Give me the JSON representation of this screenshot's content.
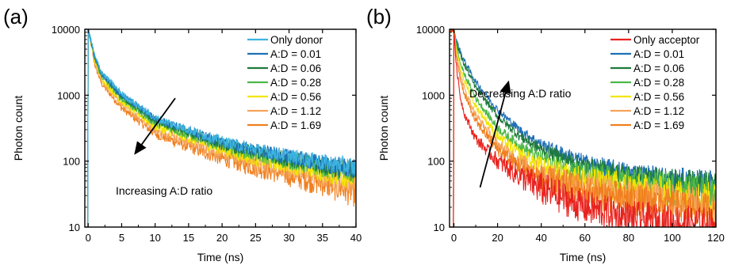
{
  "chart_data": [
    {
      "type": "line",
      "panel_label": "(a)",
      "xlabel": "Time (ns)",
      "ylabel": "Photon count",
      "xlim": [
        -0.5,
        40
      ],
      "ylim": [
        10,
        10000
      ],
      "y_scale": "log",
      "x_ticks": [
        0,
        5,
        10,
        15,
        20,
        25,
        30,
        35,
        40
      ],
      "x_tick_labels": [
        "0",
        "5",
        "10",
        "15",
        "20",
        "25",
        "30",
        "35",
        "40"
      ],
      "y_ticks": [
        10,
        100,
        1000,
        10000
      ],
      "y_tick_labels": [
        "10",
        "100",
        "1000",
        "10000"
      ],
      "legend_position": "top-right",
      "annotation": "Increasing A:D ratio",
      "grid": false,
      "series": [
        {
          "name": "Only donor",
          "color": "#3bb3e0",
          "x": [
            0,
            1,
            2,
            5,
            10,
            15,
            20,
            25,
            30,
            35,
            40
          ],
          "y": [
            10000,
            3800,
            2200,
            1050,
            450,
            300,
            200,
            150,
            120,
            95,
            80
          ]
        },
        {
          "name": "A:D = 0.01",
          "color": "#1f6fb5",
          "x": [
            0,
            1,
            2,
            5,
            10,
            15,
            20,
            25,
            30,
            35,
            40
          ],
          "y": [
            10000,
            3700,
            2150,
            1000,
            440,
            290,
            195,
            145,
            115,
            92,
            75
          ]
        },
        {
          "name": "A:D = 0.06",
          "color": "#1e7a3c",
          "x": [
            0,
            1,
            2,
            5,
            10,
            15,
            20,
            25,
            30,
            35,
            40
          ],
          "y": [
            10000,
            3600,
            2050,
            950,
            410,
            270,
            180,
            135,
            108,
            86,
            70
          ]
        },
        {
          "name": "A:D = 0.28",
          "color": "#4cb848",
          "x": [
            0,
            1,
            2,
            5,
            10,
            15,
            20,
            25,
            30,
            35,
            40
          ],
          "y": [
            10000,
            3500,
            1950,
            880,
            380,
            250,
            170,
            125,
            100,
            80,
            65
          ]
        },
        {
          "name": "A:D = 0.56",
          "color": "#f2e600",
          "x": [
            0,
            1,
            2,
            5,
            10,
            15,
            20,
            25,
            30,
            35,
            40
          ],
          "y": [
            10000,
            3300,
            1800,
            800,
            340,
            225,
            150,
            110,
            88,
            70,
            56
          ]
        },
        {
          "name": "A:D = 1.12",
          "color": "#f5a35a",
          "x": [
            0,
            1,
            2,
            5,
            10,
            15,
            20,
            25,
            30,
            35,
            40
          ],
          "y": [
            10000,
            3100,
            1650,
            720,
            300,
            195,
            130,
            95,
            75,
            60,
            48
          ]
        },
        {
          "name": "A:D = 1.69",
          "color": "#f07f1e",
          "x": [
            0,
            1,
            2,
            5,
            10,
            15,
            20,
            25,
            30,
            35,
            40
          ],
          "y": [
            10000,
            2900,
            1500,
            640,
            260,
            165,
            110,
            80,
            62,
            48,
            36
          ]
        }
      ],
      "arrow": {
        "from": [
          13,
          900
        ],
        "to": [
          7,
          130
        ]
      }
    },
    {
      "type": "line",
      "panel_label": "(b)",
      "xlabel": "Time (ns)",
      "ylabel": "Photon count",
      "xlim": [
        -2,
        120
      ],
      "ylim": [
        10,
        10000
      ],
      "y_scale": "log",
      "x_ticks": [
        0,
        20,
        40,
        60,
        80,
        100,
        120
      ],
      "x_tick_labels": [
        "0",
        "20",
        "40",
        "60",
        "80",
        "100",
        "120"
      ],
      "y_ticks": [
        10,
        100,
        1000,
        10000
      ],
      "y_tick_labels": [
        "10",
        "100",
        "1000",
        "10000"
      ],
      "legend_position": "top-right",
      "annotation": "Decreasing A:D ratio",
      "grid": false,
      "series": [
        {
          "name": "Only acceptor",
          "color": "#e8231f",
          "x": [
            0,
            1,
            3,
            5,
            10,
            20,
            30,
            40,
            60,
            80,
            100,
            120
          ],
          "y": [
            10000,
            3000,
            900,
            500,
            220,
            100,
            60,
            38,
            20,
            14,
            12,
            11
          ]
        },
        {
          "name": "A:D = 0.01",
          "color": "#1f6fb5",
          "x": [
            0,
            1,
            3,
            5,
            10,
            20,
            30,
            40,
            60,
            80,
            100,
            120
          ],
          "y": [
            10000,
            7000,
            4500,
            3200,
            1600,
            600,
            300,
            180,
            95,
            65,
            50,
            40
          ]
        },
        {
          "name": "A:D = 0.06",
          "color": "#1e7a3c",
          "x": [
            0,
            1,
            3,
            5,
            10,
            20,
            30,
            40,
            60,
            80,
            100,
            120
          ],
          "y": [
            10000,
            6500,
            4000,
            2800,
            1300,
            480,
            240,
            150,
            82,
            58,
            45,
            37
          ]
        },
        {
          "name": "A:D = 0.28",
          "color": "#4cb848",
          "x": [
            0,
            1,
            3,
            5,
            10,
            20,
            30,
            40,
            60,
            80,
            100,
            120
          ],
          "y": [
            10000,
            5500,
            3000,
            2000,
            900,
            320,
            170,
            110,
            65,
            48,
            38,
            32
          ]
        },
        {
          "name": "A:D = 0.56",
          "color": "#f2e600",
          "x": [
            0,
            1,
            3,
            5,
            10,
            20,
            30,
            40,
            60,
            80,
            100,
            120
          ],
          "y": [
            10000,
            5000,
            2500,
            1600,
            680,
            240,
            130,
            85,
            52,
            38,
            31,
            26
          ]
        },
        {
          "name": "A:D = 1.12",
          "color": "#f5a35a",
          "x": [
            0,
            1,
            3,
            5,
            10,
            20,
            30,
            40,
            60,
            80,
            100,
            120
          ],
          "y": [
            10000,
            4500,
            2000,
            1200,
            500,
            180,
            100,
            65,
            40,
            30,
            25,
            21
          ]
        },
        {
          "name": "A:D = 1.69",
          "color": "#f07f1e",
          "x": [
            0,
            1,
            3,
            5,
            10,
            20,
            30,
            40,
            60,
            80,
            100,
            120
          ],
          "y": [
            10000,
            4000,
            1700,
            1000,
            400,
            150,
            85,
            55,
            34,
            26,
            21,
            18
          ]
        }
      ],
      "arrow": {
        "from": [
          12,
          40
        ],
        "to": [
          25,
          1600
        ]
      }
    }
  ]
}
